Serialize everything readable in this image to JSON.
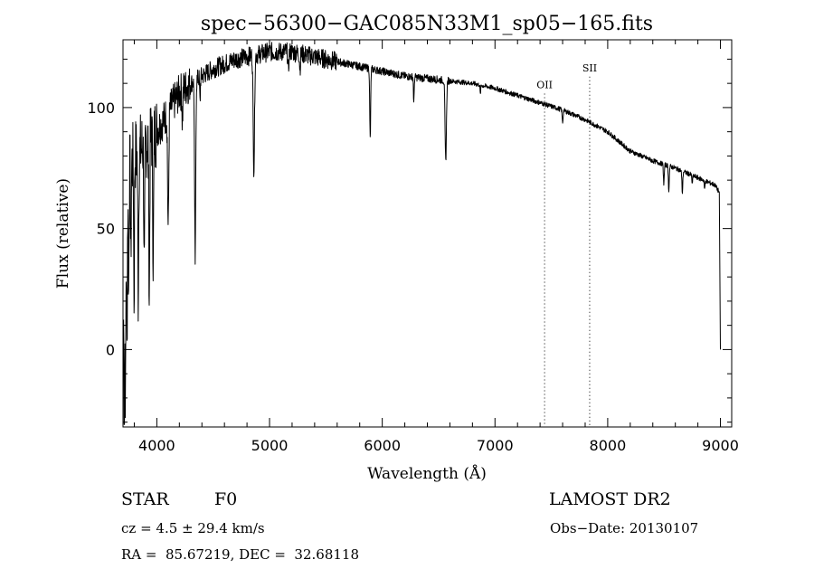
{
  "chart_data": {
    "type": "line",
    "title": "spec−56300−GAC085N33M1_sp05−165.fits",
    "xlabel": "Wavelength (Å)",
    "ylabel": "Flux (relative)",
    "xlim": [
      3700,
      9100
    ],
    "ylim": [
      -32,
      128
    ],
    "xticks": [
      4000,
      5000,
      6000,
      7000,
      8000,
      9000
    ],
    "yticks": [
      0,
      50,
      100
    ],
    "x_minor_step": 200,
    "y_minor_step": 10,
    "grid": false,
    "series": [
      {
        "name": "flux",
        "continuum": {
          "x": [
            3700,
            3720,
            3740,
            3760,
            3800,
            3850,
            3900,
            3950,
            4000,
            4050,
            4100,
            4150,
            4200,
            4300,
            4400,
            4500,
            4600,
            4700,
            4800,
            4900,
            5000,
            5200,
            5400,
            5600,
            5800,
            6000,
            6200,
            6400,
            6600,
            6800,
            7000,
            7200,
            7400,
            7600,
            7800,
            8000,
            8200,
            8400,
            8600,
            8800,
            8950,
            8990,
            9000
          ],
          "y": [
            10,
            35,
            60,
            75,
            80,
            82,
            86,
            88,
            91,
            94,
            98,
            102,
            106,
            110,
            113,
            116,
            118,
            120,
            121,
            122,
            123,
            123,
            121,
            119,
            117,
            115,
            113,
            112,
            111,
            110,
            108,
            105,
            102,
            99,
            95,
            90,
            82,
            78,
            75,
            71,
            68,
            65,
            0
          ]
        },
        "absorption_lines": [
          {
            "x": 3712,
            "depth": 55,
            "width": 3
          },
          {
            "x": 3722,
            "depth": 60,
            "width": 3
          },
          {
            "x": 3735,
            "depth": 55,
            "width": 3
          },
          {
            "x": 3750,
            "depth": 45,
            "width": 3
          },
          {
            "x": 3770,
            "depth": 40,
            "width": 3
          },
          {
            "x": 3798,
            "depth": 60,
            "width": 3
          },
          {
            "x": 3835,
            "depth": 58,
            "width": 4
          },
          {
            "x": 3889,
            "depth": 55,
            "width": 4
          },
          {
            "x": 3933,
            "depth": 65,
            "width": 4
          },
          {
            "x": 3968,
            "depth": 50,
            "width": 4
          },
          {
            "x": 4101,
            "depth": 48,
            "width": 5
          },
          {
            "x": 4227,
            "depth": 14,
            "width": 3
          },
          {
            "x": 4340,
            "depth": 75,
            "width": 5
          },
          {
            "x": 4383,
            "depth": 10,
            "width": 3
          },
          {
            "x": 4861,
            "depth": 47,
            "width": 6
          },
          {
            "x": 5167,
            "depth": 8,
            "width": 4
          },
          {
            "x": 5270,
            "depth": 6,
            "width": 4
          },
          {
            "x": 5893,
            "depth": 29,
            "width": 4
          },
          {
            "x": 6280,
            "depth": 11,
            "width": 3
          },
          {
            "x": 6563,
            "depth": 33,
            "width": 6
          },
          {
            "x": 6870,
            "depth": 4,
            "width": 3
          },
          {
            "x": 7600,
            "depth": 5,
            "width": 4
          },
          {
            "x": 8498,
            "depth": 8,
            "width": 4
          },
          {
            "x": 8542,
            "depth": 10,
            "width": 4
          },
          {
            "x": 8662,
            "depth": 9,
            "width": 4
          },
          {
            "x": 8750,
            "depth": 4,
            "width": 3
          },
          {
            "x": 8860,
            "depth": 4,
            "width": 3
          }
        ]
      }
    ],
    "annotations": [
      {
        "label": "OII",
        "x": 7440,
        "text_y": 108
      },
      {
        "label": "SII",
        "x": 7840,
        "text_y": 115
      }
    ]
  },
  "info": {
    "object_class": "STAR",
    "subclass": "F0",
    "survey": "LAMOST DR2",
    "cz": "cz = 4.5 ± 29.4 km/s",
    "obs_date": "Obs−Date: 20130107",
    "coords": "RA =  85.67219, DEC =  32.68118"
  }
}
